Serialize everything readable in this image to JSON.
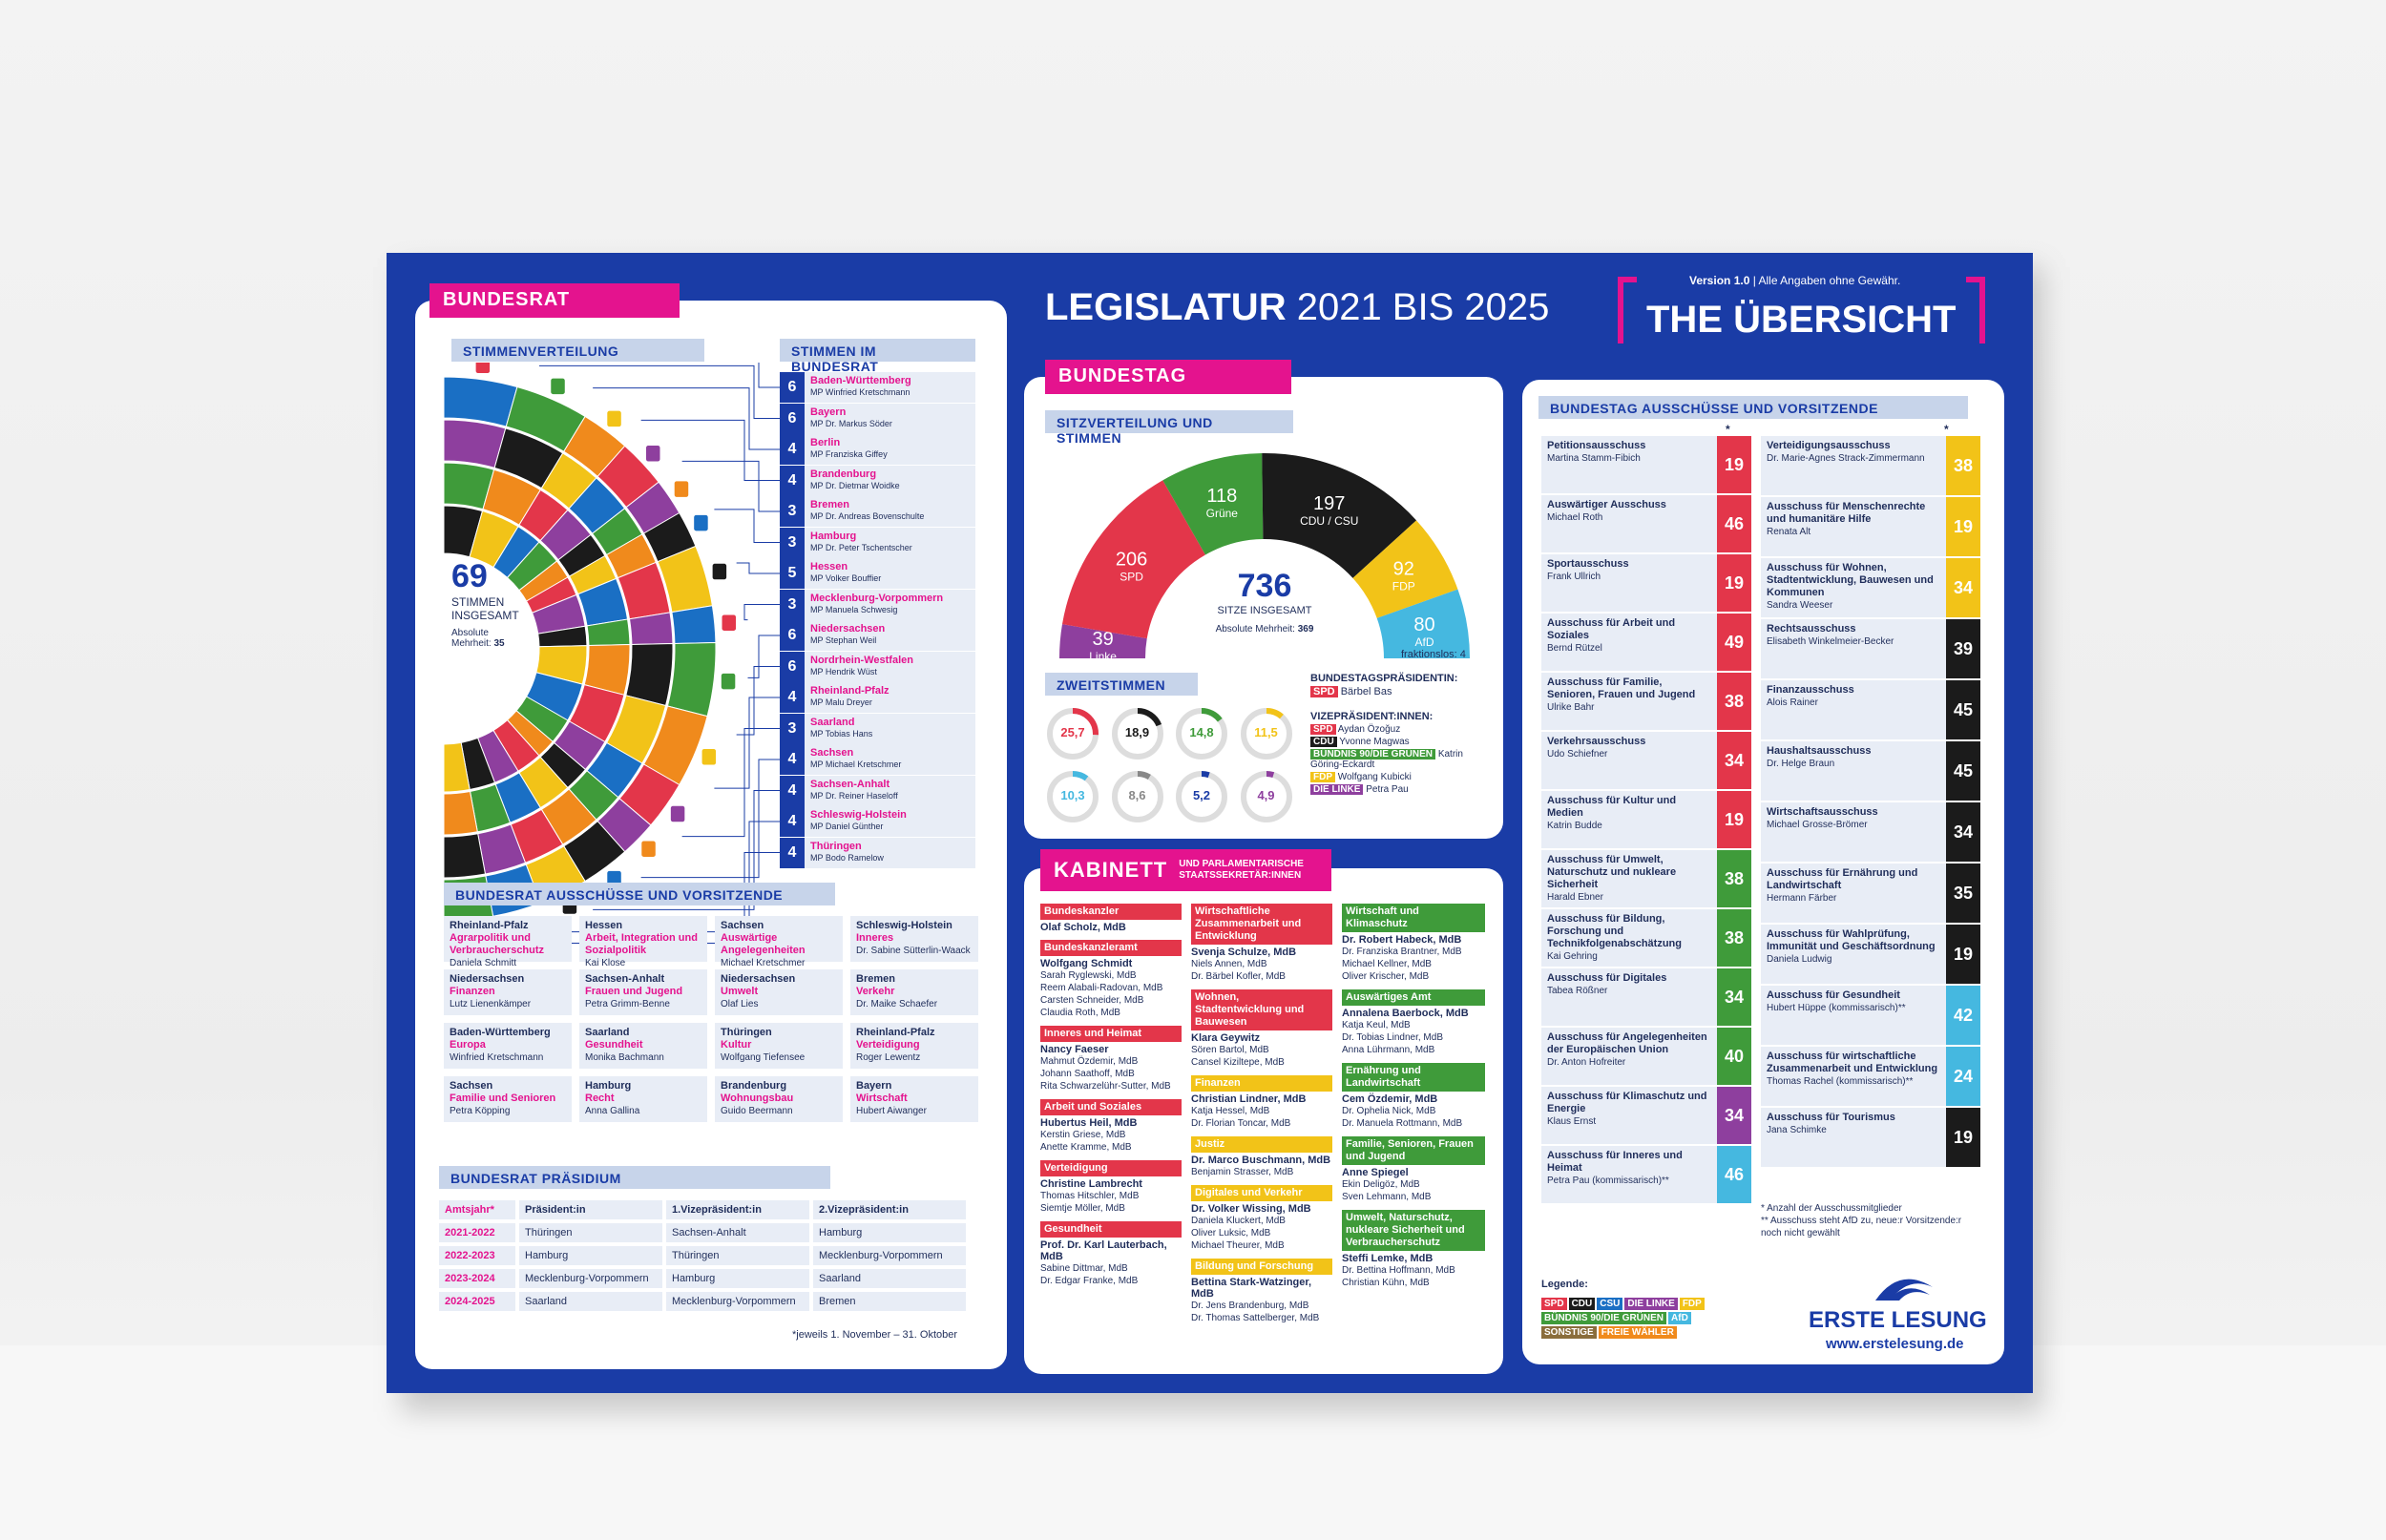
{
  "header": {
    "title_bold": "LEGISLATUR",
    "title_rest": "2021 BIS 2025",
    "version": "Version 1.0",
    "version_note": "Alle Angaben ohne Gewähr.",
    "badge": "THE ÜBERSICHT"
  },
  "bundesrat": {
    "label": "BUNDESRAT",
    "stimmenverteilung": "STIMMENVERTEILUNG",
    "stimmen_im": "STIMMEN IM BUNDESRAT",
    "total": "69",
    "total_label1": "STIMMEN",
    "total_label2": "INSGESAMT",
    "absolute_label": "Absolute",
    "mehrheit_label": "Mehrheit:",
    "mehrheit_value": "35",
    "states": [
      {
        "votes": "6",
        "name": "Baden-Württemberg",
        "mp": "MP Winfried Kretschmann"
      },
      {
        "votes": "6",
        "name": "Bayern",
        "mp": "MP Dr. Markus Söder"
      },
      {
        "votes": "4",
        "name": "Berlin",
        "mp": "MP Franziska Giffey"
      },
      {
        "votes": "4",
        "name": "Brandenburg",
        "mp": "MP Dr. Dietmar Woidke"
      },
      {
        "votes": "3",
        "name": "Bremen",
        "mp": "MP Dr. Andreas Bovenschulte"
      },
      {
        "votes": "3",
        "name": "Hamburg",
        "mp": "MP Dr. Peter Tschentscher"
      },
      {
        "votes": "5",
        "name": "Hessen",
        "mp": "MP Volker Bouffier"
      },
      {
        "votes": "3",
        "name": "Mecklenburg-Vorpommern",
        "mp": "MP Manuela Schwesig"
      },
      {
        "votes": "6",
        "name": "Niedersachsen",
        "mp": "MP Stephan Weil"
      },
      {
        "votes": "6",
        "name": "Nordrhein-Westfalen",
        "mp": "MP Hendrik Wüst"
      },
      {
        "votes": "4",
        "name": "Rheinland-Pfalz",
        "mp": "MP Malu Dreyer"
      },
      {
        "votes": "3",
        "name": "Saarland",
        "mp": "MP Tobias Hans"
      },
      {
        "votes": "4",
        "name": "Sachsen",
        "mp": "MP Michael Kretschmer"
      },
      {
        "votes": "4",
        "name": "Sachsen-Anhalt",
        "mp": "MP Dr. Reiner Haseloff"
      },
      {
        "votes": "4",
        "name": "Schleswig-Holstein",
        "mp": "MP Daniel Günther"
      },
      {
        "votes": "4",
        "name": "Thüringen",
        "mp": "MP Bodo Ramelow"
      }
    ],
    "ausschuesse_title": "BUNDESRAT AUSSCHÜSSE UND VORSITZENDE",
    "ausschuesse": [
      {
        "land": "Rheinland-Pfalz",
        "topic": "Agrarpolitik und Verbraucherschutz",
        "person": "Daniela Schmitt"
      },
      {
        "land": "Hessen",
        "topic": "Arbeit, Integration und Sozialpolitik",
        "person": "Kai Klose"
      },
      {
        "land": "Sachsen",
        "topic": "Auswärtige Angelegenheiten",
        "person": "Michael Kretschmer"
      },
      {
        "land": "Schleswig-Holstein",
        "topic": "Inneres",
        "person": "Dr. Sabine Sütterlin-Waack"
      },
      {
        "land": "Niedersachsen",
        "topic": "Finanzen",
        "person": "Lutz Lienenkämper"
      },
      {
        "land": "Sachsen-Anhalt",
        "topic": "Frauen und Jugend",
        "person": "Petra Grimm-Benne"
      },
      {
        "land": "Niedersachsen",
        "topic": "Umwelt",
        "person": "Olaf Lies"
      },
      {
        "land": "Bremen",
        "topic": "Verkehr",
        "person": "Dr. Maike Schaefer"
      },
      {
        "land": "Baden-Württemberg",
        "topic": "Europa",
        "person": "Winfried Kretschmann"
      },
      {
        "land": "Saarland",
        "topic": "Gesundheit",
        "person": "Monika Bachmann"
      },
      {
        "land": "Thüringen",
        "topic": "Kultur",
        "person": "Wolfgang Tiefensee"
      },
      {
        "land": "Rheinland-Pfalz",
        "topic": "Verteidigung",
        "person": "Roger Lewentz"
      },
      {
        "land": "Sachsen",
        "topic": "Familie und Senioren",
        "person": "Petra Köpping"
      },
      {
        "land": "Hamburg",
        "topic": "Recht",
        "person": "Anna Gallina"
      },
      {
        "land": "Brandenburg",
        "topic": "Wohnungsbau",
        "person": "Guido Beermann"
      },
      {
        "land": "Bayern",
        "topic": "Wirtschaft",
        "person": "Hubert Aiwanger"
      }
    ],
    "praesidium_title": "BUNDESRAT PRÄSIDIUM",
    "praesidium_head": [
      "Amtsjahr*",
      "Präsident:in",
      "1.Vizepräsident:in",
      "2.Vizepräsident:in"
    ],
    "praesidium_rows": [
      [
        "2021-2022",
        "Thüringen",
        "Sachsen-Anhalt",
        "Hamburg"
      ],
      [
        "2022-2023",
        "Hamburg",
        "Thüringen",
        "Mecklenburg-Vorpommern"
      ],
      [
        "2023-2024",
        "Mecklenburg-Vorpommern",
        "Hamburg",
        "Saarland"
      ],
      [
        "2024-2025",
        "Saarland",
        "Mecklenburg-Vorpommern",
        "Bremen"
      ]
    ],
    "praesidium_note": "*jeweils 1. November – 31. Oktober"
  },
  "bundestag": {
    "label": "BUNDESTAG",
    "sitz_title": "SITZVERTEILUNG UND STIMMEN",
    "total": "736",
    "total_label": "SITZE INSGESAMT",
    "mehrheit_label": "Absolute Mehrheit:",
    "mehrheit_value": "369",
    "fraktionslos": "fraktionslos: 4",
    "parties": [
      {
        "seats": "39",
        "name": "Linke",
        "color": "#8e3f9e"
      },
      {
        "seats": "206",
        "name": "SPD",
        "color": "#e3364a"
      },
      {
        "seats": "118",
        "name": "Grüne",
        "color": "#3f9b3a"
      },
      {
        "seats": "197",
        "name": "CDU / CSU",
        "color": "#1b1b1b"
      },
      {
        "seats": "92",
        "name": "FDP",
        "color": "#f2c318"
      },
      {
        "seats": "80",
        "name": "AfD",
        "color": "#45b8e0"
      }
    ],
    "zweit_title": "ZWEITSTIMMEN",
    "zweit": [
      {
        "value": "25,7",
        "color": "#e3364a"
      },
      {
        "value": "18,9",
        "color": "#1b1b1b"
      },
      {
        "value": "14,8",
        "color": "#3f9b3a"
      },
      {
        "value": "11,5",
        "color": "#f2c318"
      },
      {
        "value": "10,3",
        "color": "#45b8e0"
      },
      {
        "value": "8,6",
        "color": "#888888"
      },
      {
        "value": "5,2",
        "color": "#1a3ca6"
      },
      {
        "value": "4,9",
        "color": "#8e3f9e"
      }
    ],
    "praesidentin_title": "BUNDESTAGSPRÄSIDENTIN:",
    "praesidentin_party": "SPD",
    "praesidentin": "Bärbel Bas",
    "vize_title": "VIZEPRÄSIDENT:INNEN:",
    "vize": [
      {
        "party": "SPD",
        "name": "Aydan Özoğuz",
        "color": "#e3364a"
      },
      {
        "party": "CDU",
        "name": "Yvonne Magwas",
        "color": "#1b1b1b"
      },
      {
        "party": "BÜNDNIS 90/DIE GRÜNEN",
        "name": "Katrin Göring-Eckardt",
        "color": "#3f9b3a"
      },
      {
        "party": "FDP",
        "name": "Wolfgang Kubicki",
        "color": "#f2c318"
      },
      {
        "party": "DIE LINKE",
        "name": "Petra Pau",
        "color": "#8e3f9e"
      }
    ]
  },
  "kabinett": {
    "label": "KABINETT",
    "sub1": "UND PARLAMENTARISCHE",
    "sub2": "STAATSSEKRETÄR:INNEN",
    "col1": [
      {
        "ressort": "Bundeskanzler",
        "color": "#e3364a",
        "lead": "Olaf Scholz, MdB",
        "others": []
      },
      {
        "ressort": "Bundeskanzleramt",
        "color": "#e3364a",
        "lead": "Wolfgang Schmidt",
        "others": [
          "Sarah Ryglewski, MdB",
          "Reem Alabali-Radovan, MdB",
          "Carsten Schneider, MdB",
          "Claudia Roth, MdB"
        ]
      },
      {
        "ressort": "Inneres und Heimat",
        "color": "#e3364a",
        "lead": "Nancy Faeser",
        "others": [
          "Mahmut Özdemir, MdB",
          "Johann Saathoff, MdB",
          "Rita Schwarzelühr-Sutter, MdB"
        ]
      },
      {
        "ressort": "Arbeit und Soziales",
        "color": "#e3364a",
        "lead": "Hubertus Heil, MdB",
        "others": [
          "Kerstin Griese, MdB",
          "Anette Kramme, MdB"
        ]
      },
      {
        "ressort": "Verteidigung",
        "color": "#e3364a",
        "lead": "Christine Lambrecht",
        "others": [
          "Thomas Hitschler, MdB",
          "Siemtje Möller, MdB"
        ]
      },
      {
        "ressort": "Gesundheit",
        "color": "#e3364a",
        "lead": "Prof. Dr. Karl Lauterbach, MdB",
        "others": [
          "Sabine Dittmar, MdB",
          "Dr. Edgar Franke, MdB"
        ]
      }
    ],
    "col2": [
      {
        "ressort": "Wirtschaftliche Zusammenarbeit und Entwicklung",
        "color": "#e3364a",
        "lead": "Svenja Schulze, MdB",
        "others": [
          "Niels Annen, MdB",
          "Dr. Bärbel Kofler, MdB"
        ]
      },
      {
        "ressort": "Wohnen, Stadtentwicklung und Bauwesen",
        "color": "#e3364a",
        "lead": "Klara Geywitz",
        "others": [
          "Sören Bartol, MdB",
          "Cansel Kiziltepe, MdB"
        ]
      },
      {
        "ressort": "Finanzen",
        "color": "#f2c318",
        "lead": "Christian Lindner, MdB",
        "others": [
          "Katja Hessel, MdB",
          "Dr. Florian Toncar, MdB"
        ]
      },
      {
        "ressort": "Justiz",
        "color": "#f2c318",
        "lead": "Dr. Marco Buschmann, MdB",
        "others": [
          "Benjamin Strasser, MdB"
        ]
      },
      {
        "ressort": "Digitales und Verkehr",
        "color": "#f2c318",
        "lead": "Dr. Volker Wissing, MdB",
        "others": [
          "Daniela Kluckert, MdB",
          "Oliver Luksic, MdB",
          "Michael Theurer, MdB"
        ]
      },
      {
        "ressort": "Bildung und Forschung",
        "color": "#f2c318",
        "lead": "Bettina Stark-Watzinger, MdB",
        "others": [
          "Dr. Jens Brandenburg, MdB",
          "Dr. Thomas Sattelberger, MdB"
        ]
      }
    ],
    "col3": [
      {
        "ressort": "Wirtschaft und Klimaschutz",
        "color": "#3f9b3a",
        "lead": "Dr. Robert Habeck, MdB",
        "others": [
          "Dr. Franziska Brantner, MdB",
          "Michael Kellner, MdB",
          "Oliver Krischer, MdB"
        ]
      },
      {
        "ressort": "Auswärtiges Amt",
        "color": "#3f9b3a",
        "lead": "Annalena Baerbock, MdB",
        "others": [
          "Katja Keul, MdB",
          "Dr. Tobias Lindner, MdB",
          "Anna Lührmann, MdB"
        ]
      },
      {
        "ressort": "Ernährung und Landwirtschaft",
        "color": "#3f9b3a",
        "lead": "Cem Özdemir, MdB",
        "others": [
          "Dr. Ophelia Nick, MdB",
          "Dr. Manuela Rottmann, MdB"
        ]
      },
      {
        "ressort": "Familie, Senioren, Frauen und Jugend",
        "color": "#3f9b3a",
        "lead": "Anne Spiegel",
        "others": [
          "Ekin Deligöz, MdB",
          "Sven Lehmann, MdB"
        ]
      },
      {
        "ressort": "Umwelt, Naturschutz, nukleare Sicherheit und Verbraucherschutz",
        "color": "#3f9b3a",
        "lead": "Steffi Lemke, MdB",
        "others": [
          "Dr. Bettina Hoffmann, MdB",
          "Christian Kühn, MdB"
        ]
      }
    ]
  },
  "ausschuesse": {
    "title": "BUNDESTAG AUSSCHÜSSE UND VORSITZENDE",
    "star": "*",
    "left": [
      {
        "name": "Petitionsausschuss",
        "person": "Martina Stamm-Fibich",
        "n": "19",
        "color": "#e3364a"
      },
      {
        "name": "Auswärtiger Ausschuss",
        "person": "Michael Roth",
        "n": "46",
        "color": "#e3364a"
      },
      {
        "name": "Sportausschuss",
        "person": "Frank Ullrich",
        "n": "19",
        "color": "#e3364a"
      },
      {
        "name": "Ausschuss für Arbeit und Soziales",
        "person": "Bernd Rützel",
        "n": "49",
        "color": "#e3364a"
      },
      {
        "name": "Ausschuss für Familie, Senioren, Frauen und Jugend",
        "person": "Ulrike Bahr",
        "n": "38",
        "color": "#e3364a"
      },
      {
        "name": "Verkehrsausschuss",
        "person": "Udo Schiefner",
        "n": "34",
        "color": "#e3364a"
      },
      {
        "name": "Ausschuss für Kultur und Medien",
        "person": "Katrin Budde",
        "n": "19",
        "color": "#e3364a"
      },
      {
        "name": "Ausschuss für Umwelt, Naturschutz und nukleare Sicherheit",
        "person": "Harald Ebner",
        "n": "38",
        "color": "#3f9b3a"
      },
      {
        "name": "Ausschuss für Bildung, Forschung und Technikfolgenabschätzung",
        "person": "Kai Gehring",
        "n": "38",
        "color": "#3f9b3a"
      },
      {
        "name": "Ausschuss für Digitales",
        "person": "Tabea Rößner",
        "n": "34",
        "color": "#3f9b3a"
      },
      {
        "name": "Ausschuss für Angelegenheiten der Europäischen Union",
        "person": "Dr. Anton Hofreiter",
        "n": "40",
        "color": "#3f9b3a"
      },
      {
        "name": "Ausschuss für Klimaschutz und Energie",
        "person": "Klaus Ernst",
        "n": "34",
        "color": "#8e3f9e"
      },
      {
        "name": "Ausschuss für Inneres und Heimat",
        "person": "Petra Pau (kommissarisch)**",
        "n": "46",
        "color": "#45b8e0"
      }
    ],
    "right": [
      {
        "name": "Verteidigungsausschuss",
        "person": "Dr. Marie-Agnes Strack-Zimmermann",
        "n": "38",
        "color": "#f2c318"
      },
      {
        "name": "Ausschuss für Menschenrechte und humanitäre Hilfe",
        "person": "Renata Alt",
        "n": "19",
        "color": "#f2c318"
      },
      {
        "name": "Ausschuss für Wohnen, Stadtentwicklung, Bauwesen und Kommunen",
        "person": "Sandra Weeser",
        "n": "34",
        "color": "#f2c318"
      },
      {
        "name": "Rechtsausschuss",
        "person": "Elisabeth Winkelmeier-Becker",
        "n": "39",
        "color": "#1b1b1b"
      },
      {
        "name": "Finanzausschuss",
        "person": "Alois Rainer",
        "n": "45",
        "color": "#1b1b1b"
      },
      {
        "name": "Haushaltsausschuss",
        "person": "Dr. Helge Braun",
        "n": "45",
        "color": "#1b1b1b"
      },
      {
        "name": "Wirtschaftsausschuss",
        "person": "Michael Grosse-Brömer",
        "n": "34",
        "color": "#1b1b1b"
      },
      {
        "name": "Ausschuss für Ernährung und Landwirtschaft",
        "person": "Hermann Färber",
        "n": "35",
        "color": "#1b1b1b"
      },
      {
        "name": "Ausschuss für Wahlprüfung, Immunität und Geschäftsordnung",
        "person": "Daniela Ludwig",
        "n": "19",
        "color": "#1b1b1b"
      },
      {
        "name": "Ausschuss für Gesundheit",
        "person": "Hubert Hüppe (kommissarisch)**",
        "n": "42",
        "color": "#45b8e0"
      },
      {
        "name": "Ausschuss für wirtschaftliche Zusammenarbeit und Entwicklung",
        "person": "Thomas Rachel (kommissarisch)**",
        "n": "24",
        "color": "#45b8e0"
      },
      {
        "name": "Ausschuss für Tourismus",
        "person": "Jana Schimke",
        "n": "19",
        "color": "#1b1b1b"
      }
    ],
    "note1": "*  Anzahl der Ausschussmitglieder",
    "note2": "** Ausschuss steht AfD zu, neue:r Vorsitzende:r noch nicht gewählt",
    "legende": "Legende:",
    "legend": [
      {
        "label": "SPD",
        "color": "#e3364a"
      },
      {
        "label": "CDU",
        "color": "#1b1b1b"
      },
      {
        "label": "CSU",
        "color": "#1a6fc4"
      },
      {
        "label": "DIE LINKE",
        "color": "#8e3f9e"
      },
      {
        "label": "FDP",
        "color": "#f2c318"
      },
      {
        "label": "BÜNDNIS 90/DIE GRÜNEN",
        "color": "#3f9b3a"
      },
      {
        "label": "AfD",
        "color": "#45b8e0"
      },
      {
        "label": "SONSTIGE",
        "color": "#8a6d3b"
      },
      {
        "label": "FREIE WÄHLER",
        "color": "#f08a1c"
      }
    ],
    "brand": "ERSTE LESUNG",
    "url": "www.erstelesung.de"
  }
}
